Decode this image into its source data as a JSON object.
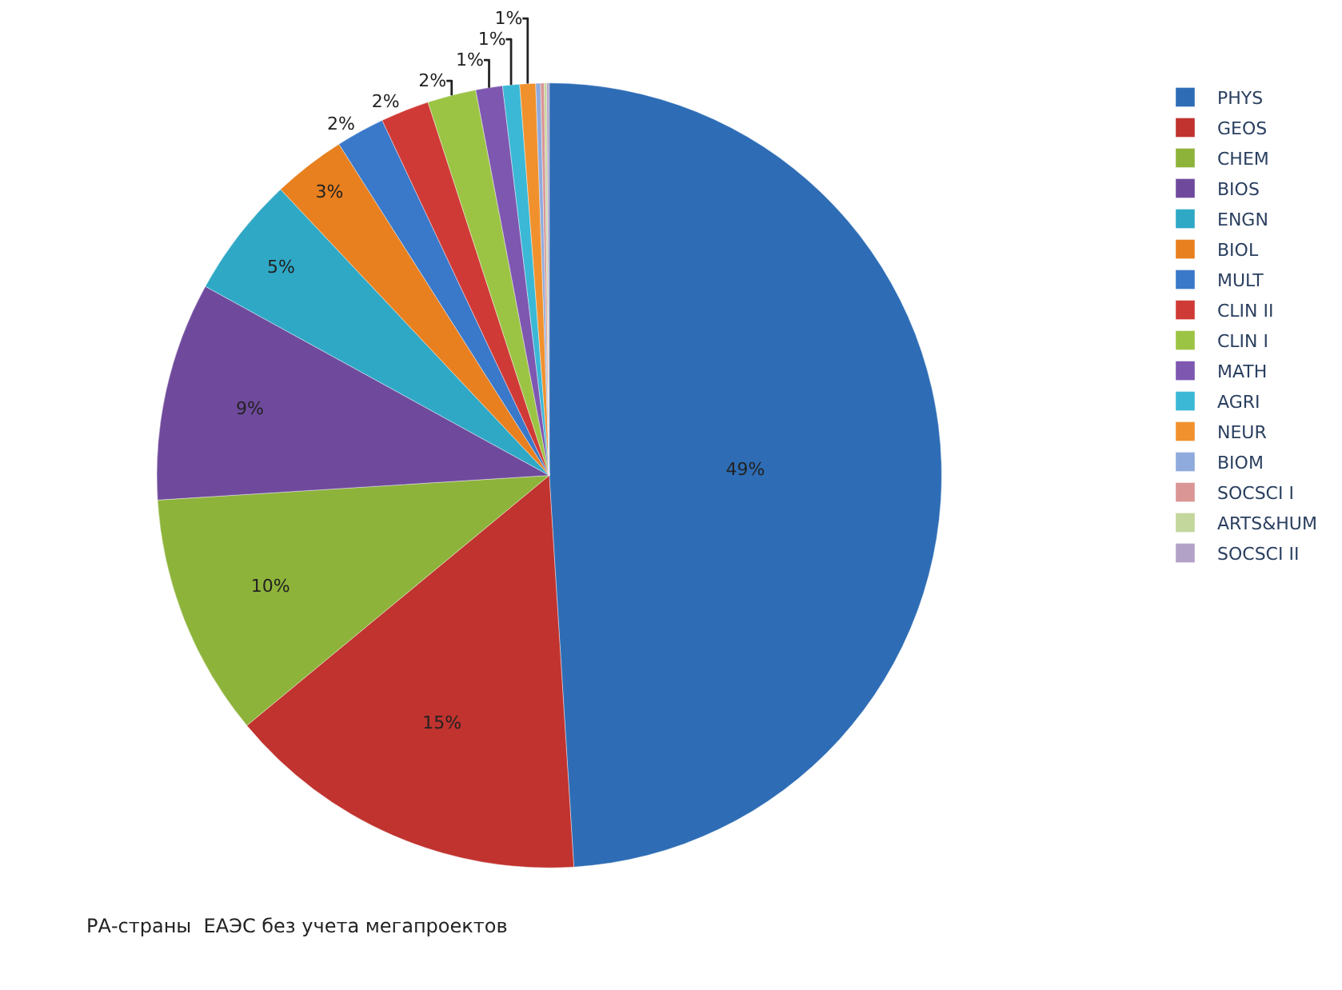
{
  "chart_data": {
    "type": "pie",
    "categories": [
      "PHYS",
      "GEOS",
      "CHEM",
      "BIOS",
      "ENGN",
      "BIOL",
      "MULT",
      "CLIN II",
      "CLIN I",
      "MATH",
      "AGRI",
      "NEUR",
      "BIOM",
      "SOCSCI I",
      "ARTS&HUM",
      "SOCSCI II"
    ],
    "values": [
      49,
      15,
      10,
      9,
      5,
      3,
      2,
      2,
      2,
      1.1,
      0.7,
      0.65,
      0.2,
      0.15,
      0.1,
      0.1
    ],
    "value_labels": [
      "49%",
      "15%",
      "10%",
      "9%",
      "5%",
      "3%",
      "2%",
      "2%",
      "2%",
      "1%",
      "1%",
      "1%",
      null,
      null,
      null,
      null
    ],
    "colors": [
      "#2e6db5",
      "#c0332f",
      "#8db33a",
      "#6f4a9c",
      "#2fa8c6",
      "#e8801f",
      "#3a78c9",
      "#d03a36",
      "#9cc444",
      "#7e57b0",
      "#3bb8d6",
      "#f0912e",
      "#8faadc",
      "#d99694",
      "#c3d69b",
      "#b3a2c7"
    ],
    "legend": "right",
    "annotations": [
      "РА-страны  ЕАЭС без учета мегапроектов"
    ]
  }
}
